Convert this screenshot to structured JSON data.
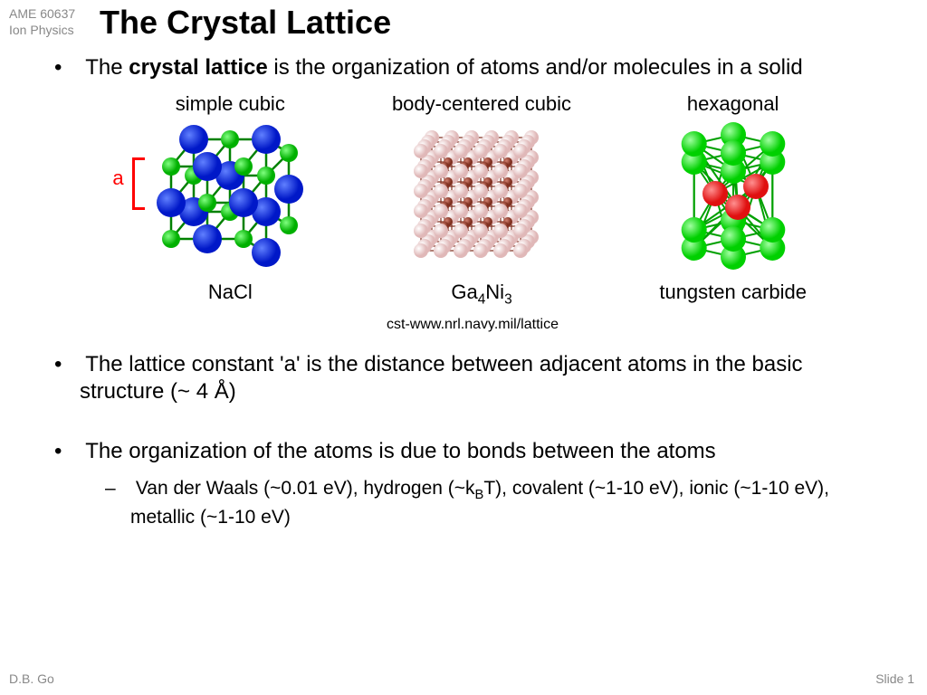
{
  "header": {
    "course_code": "AME 60637",
    "course_name": "Ion Physics"
  },
  "title": "The Crystal Lattice",
  "bullets": {
    "b1_pre": "The ",
    "b1_bold": "crystal lattice",
    "b1_post": " is the organization of atoms and/or molecules in a solid",
    "b2": "The lattice constant 'a' is the distance between adjacent atoms in the basic structure (~ 4 Å)",
    "b3": "The organization of the atoms is due to bonds between the atoms",
    "b3_sub_pre": "Van der Waals (~0.01 eV), hydrogen (~k",
    "b3_sub_post": "T), covalent (~1-10 eV), ionic (~1-10 eV), metallic (~1-10 eV)"
  },
  "diagrams": {
    "simple_cubic": {
      "label_top": "simple cubic",
      "label_bottom": "NaCl",
      "lattice_a_label": "a",
      "colors": {
        "atom1": "#0018c8",
        "atom2": "#00d000",
        "bond": "#008000"
      }
    },
    "bcc": {
      "label_top": "body-centered cubic",
      "label_bottom_pre": "Ga",
      "label_bottom_sub1": "4",
      "label_bottom_mid": "Ni",
      "label_bottom_sub2": "3",
      "colors": {
        "atom1": "#e8c8c8",
        "atom2": "#a04030",
        "bond": "#803020"
      }
    },
    "hexagonal": {
      "label_top": "hexagonal",
      "label_bottom": "tungsten carbide",
      "colors": {
        "atom1": "#00e000",
        "atom2": "#ff2020",
        "bond": "#00a000"
      }
    }
  },
  "source_url": "cst-www.nrl.navy.mil/lattice",
  "footer": {
    "author": "D.B. Go",
    "slide": "Slide 1"
  }
}
